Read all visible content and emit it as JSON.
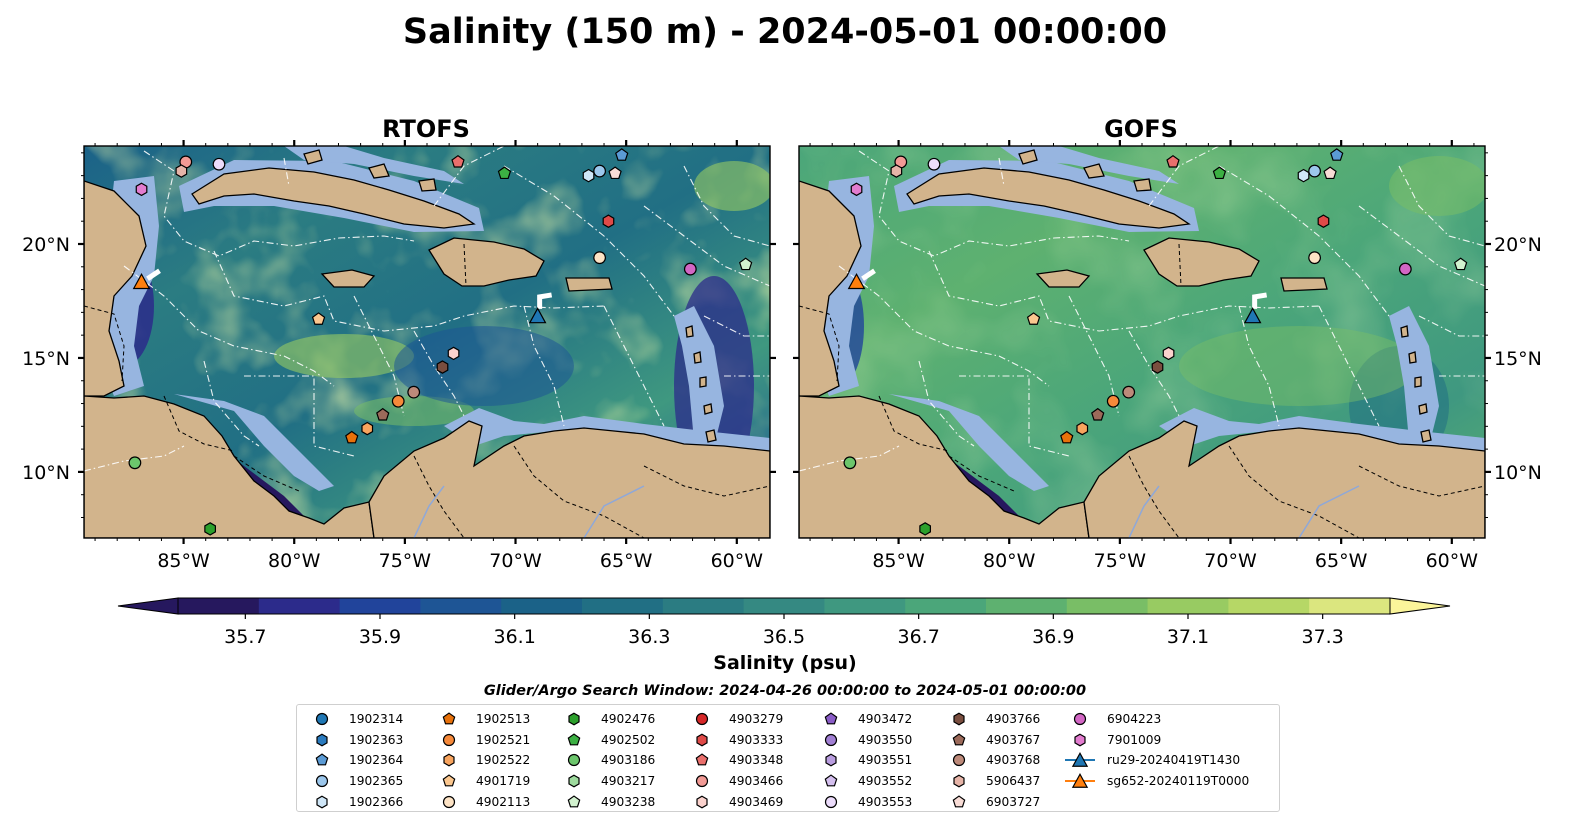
{
  "title": "Salinity (150 m) - 2024-05-01 00:00:00",
  "panels": [
    {
      "title": "RTOFS",
      "theme": "rtofs"
    },
    {
      "title": "GOFS",
      "theme": "gofs"
    }
  ],
  "axes": {
    "lon_ticks": [
      "85°W",
      "80°W",
      "75°W",
      "70°W",
      "65°W",
      "60°W"
    ],
    "lat_ticks": [
      "20°N",
      "15°N",
      "10°N"
    ],
    "lon_values": [
      -85,
      -80,
      -75,
      -70,
      -65,
      -60
    ],
    "lat_values": [
      20,
      15,
      10
    ],
    "lon_range": [
      -89.5,
      -58.5
    ],
    "lat_range": [
      7.1,
      24.3
    ]
  },
  "colorbar": {
    "label": "Salinity (psu)",
    "ticks": [
      "35.7",
      "35.9",
      "36.1",
      "36.3",
      "36.5",
      "36.7",
      "36.9",
      "37.1",
      "37.3"
    ],
    "range": [
      35.6,
      37.4
    ],
    "colors": [
      "#26185e",
      "#2c2b8b",
      "#21449b",
      "#1e5595",
      "#1b6288",
      "#216f84",
      "#2b7c82",
      "#358982",
      "#3f9880",
      "#4ba67a",
      "#5eb170",
      "#79be66",
      "#98cb62",
      "#b6d766",
      "#dbe67f"
    ],
    "extend_min_color": "#26185e",
    "extend_max_color": "#fbf59a"
  },
  "legend": {
    "title": "Glider/Argo Search Window: 2024-04-26 00:00:00 to 2024-05-01 00:00:00",
    "columns": [
      [
        {
          "label": "1902314",
          "marker": "circle",
          "color": "#1f77b4"
        },
        {
          "label": "1902363",
          "marker": "hexagon",
          "color": "#2a7bbf"
        },
        {
          "label": "1902364",
          "marker": "pentagon",
          "color": "#5b9bd5"
        },
        {
          "label": "1902365",
          "marker": "circle",
          "color": "#9cc7ec"
        },
        {
          "label": "1902366",
          "marker": "hexagon",
          "color": "#cfe6f7"
        }
      ],
      [
        {
          "label": "1902513",
          "marker": "pentagon",
          "color": "#e8710a"
        },
        {
          "label": "1902521",
          "marker": "circle",
          "color": "#f6893a"
        },
        {
          "label": "1902522",
          "marker": "hexagon",
          "color": "#f8a45e"
        },
        {
          "label": "4901719",
          "marker": "pentagon",
          "color": "#fbc78f"
        },
        {
          "label": "4902113",
          "marker": "circle",
          "color": "#fde3c5"
        }
      ],
      [
        {
          "label": "4902476",
          "marker": "hexagon",
          "color": "#2ca02c"
        },
        {
          "label": "4902502",
          "marker": "pentagon",
          "color": "#3cb043"
        },
        {
          "label": "4903186",
          "marker": "circle",
          "color": "#6cc66c"
        },
        {
          "label": "4903217",
          "marker": "hexagon",
          "color": "#9edb9e"
        },
        {
          "label": "4903238",
          "marker": "pentagon",
          "color": "#d2f2cf"
        }
      ],
      [
        {
          "label": "4903279",
          "marker": "circle",
          "color": "#d62728"
        },
        {
          "label": "4903333",
          "marker": "hexagon",
          "color": "#df4a48"
        },
        {
          "label": "4903348",
          "marker": "pentagon",
          "color": "#ea6f6c"
        },
        {
          "label": "4903466",
          "marker": "circle",
          "color": "#f29a95"
        },
        {
          "label": "4903469",
          "marker": "hexagon",
          "color": "#fbd2cd"
        }
      ],
      [
        {
          "label": "4903472",
          "marker": "pentagon",
          "color": "#8a5cc7"
        },
        {
          "label": "4903550",
          "marker": "circle",
          "color": "#a17fd3"
        },
        {
          "label": "4903551",
          "marker": "hexagon",
          "color": "#b99ddf"
        },
        {
          "label": "4903552",
          "marker": "pentagon",
          "color": "#d4bfee"
        },
        {
          "label": "4903553",
          "marker": "circle",
          "color": "#ecdcfb"
        }
      ],
      [
        {
          "label": "4903766",
          "marker": "hexagon",
          "color": "#7a4e3f"
        },
        {
          "label": "4903767",
          "marker": "pentagon",
          "color": "#9c6a5a"
        },
        {
          "label": "4903768",
          "marker": "circle",
          "color": "#bd8a7a"
        },
        {
          "label": "5906437",
          "marker": "hexagon",
          "color": "#e6b4a8"
        },
        {
          "label": "6903727",
          "marker": "pentagon",
          "color": "#f8dcd6"
        }
      ],
      [
        {
          "label": "6904223",
          "marker": "circle",
          "color": "#d266c4"
        },
        {
          "label": "7901009",
          "marker": "hexagon",
          "color": "#e27ccf"
        },
        {
          "label": "ru29-20240419T1430",
          "marker": "triangle-line",
          "color": "#1f77b4"
        },
        {
          "label": "sg652-20240119T0000",
          "marker": "triangle-line",
          "color": "#ff7f0e"
        }
      ]
    ]
  },
  "floats": [
    {
      "id": "1902364",
      "lon": -65.2,
      "lat": 23.9
    },
    {
      "id": "1902365",
      "lon": -66.2,
      "lat": 23.2
    },
    {
      "id": "1902366",
      "lon": -66.7,
      "lat": 23.0
    },
    {
      "id": "6903727",
      "lon": -65.5,
      "lat": 23.1
    },
    {
      "id": "4902502",
      "lon": -70.5,
      "lat": 23.1
    },
    {
      "id": "4903348",
      "lon": -72.6,
      "lat": 23.6
    },
    {
      "id": "4903466",
      "lon": -84.9,
      "lat": 23.6
    },
    {
      "id": "4903553",
      "lon": -83.4,
      "lat": 23.5
    },
    {
      "id": "5906437",
      "lon": -85.1,
      "lat": 23.2
    },
    {
      "id": "7901009",
      "lon": -86.9,
      "lat": 22.4
    },
    {
      "id": "4903333",
      "lon": -65.8,
      "lat": 21.0
    },
    {
      "id": "4902113",
      "lon": -66.2,
      "lat": 19.4
    },
    {
      "id": "6904223",
      "lon": -62.1,
      "lat": 18.9
    },
    {
      "id": "4903238",
      "lon": -59.6,
      "lat": 19.1
    },
    {
      "id": "4901719",
      "lon": -78.9,
      "lat": 16.7
    },
    {
      "id": "4903469",
      "lon": -72.8,
      "lat": 15.2
    },
    {
      "id": "4903766",
      "lon": -73.3,
      "lat": 14.6
    },
    {
      "id": "4903768",
      "lon": -74.6,
      "lat": 13.5
    },
    {
      "id": "1902521",
      "lon": -75.3,
      "lat": 13.1
    },
    {
      "id": "4903767",
      "lon": -76.0,
      "lat": 12.5
    },
    {
      "id": "1902522",
      "lon": -76.7,
      "lat": 11.9
    },
    {
      "id": "1902513",
      "lon": -77.4,
      "lat": 11.5
    },
    {
      "id": "4903186",
      "lon": -87.2,
      "lat": 10.4
    },
    {
      "id": "4902476",
      "lon": -83.8,
      "lat": 7.5
    }
  ],
  "gliders": [
    {
      "id": "ru29-20240419T1430",
      "lon": -69.0,
      "lat": 16.8
    },
    {
      "id": "sg652-20240119T0000",
      "lon": -86.9,
      "lat": 18.3
    }
  ]
}
